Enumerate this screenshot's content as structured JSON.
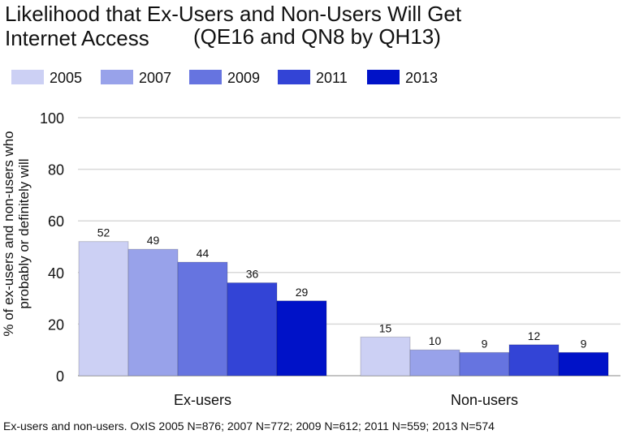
{
  "chart_data": {
    "type": "bar",
    "title": "Likelihood that Ex-Users and Non-Users Will Get Internet Access",
    "subtitle": "(QE16 and QN8 by QH13)",
    "ylabel_line1": "% of ex-users and non-users who",
    "ylabel_line2": "probably or definitely will",
    "xlabel": "",
    "categories": [
      "Ex-users",
      "Non-users"
    ],
    "series": [
      {
        "name": "2005",
        "color": "#ccd0f4",
        "values": [
          52,
          15
        ]
      },
      {
        "name": "2007",
        "color": "#98a2ea",
        "values": [
          49,
          10
        ]
      },
      {
        "name": "2009",
        "color": "#6674e0",
        "values": [
          44,
          9
        ]
      },
      {
        "name": "2011",
        "color": "#3344d6",
        "values": [
          36,
          12
        ]
      },
      {
        "name": "2013",
        "color": "#0012c8",
        "values": [
          29,
          9
        ]
      }
    ],
    "ylim": [
      0,
      100
    ],
    "yticks": [
      0,
      20,
      40,
      60,
      80,
      100
    ],
    "grid": true,
    "legend_position": "top",
    "footnote": "Ex-users and non-users. OxIS 2005 N=876; 2007 N=772; 2009 N=612; 2011 N=559; 2013 N=574"
  },
  "title": {
    "line1": "Likelihood that Ex-Users and Non-Users Will Get",
    "line2": "Internet Access",
    "line3": "(QE16 and QN8 by QH13)"
  }
}
